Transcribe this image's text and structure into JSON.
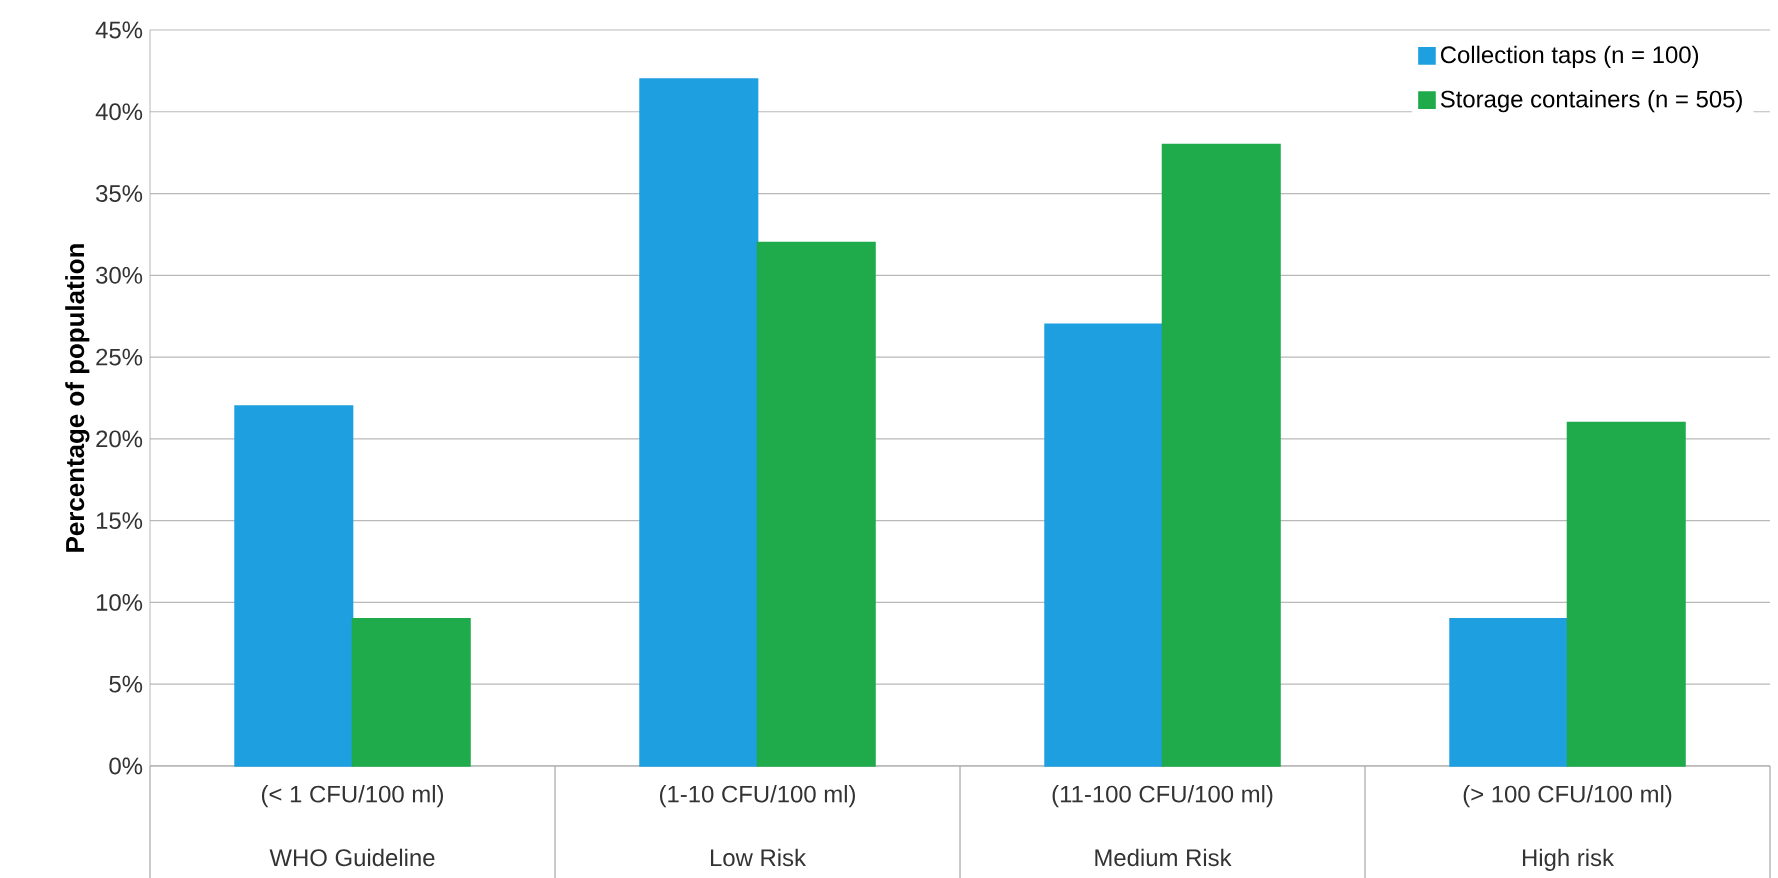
{
  "chart_data": {
    "type": "bar",
    "ylabel": "Percentage of population",
    "categories": [
      "(< 1 CFU/100 ml)",
      "(1-10 CFU/100 ml)",
      "(11-100 CFU/100 ml)",
      "(> 100 CFU/100 ml)"
    ],
    "series": [
      {
        "name": "Collection taps (n = 100)",
        "color": "#1e9fe0",
        "values": [
          22,
          42,
          27,
          9
        ]
      },
      {
        "name": "Storage containers (n = 505)",
        "color": "#1faa4b",
        "values": [
          9,
          32,
          38,
          21
        ]
      }
    ],
    "annotations": [
      "WHO Guideline",
      "Low Risk",
      "Medium Risk",
      "High risk"
    ],
    "ylim": [
      0,
      45
    ],
    "yticks": [
      {
        "value": 0,
        "label": "0%"
      },
      {
        "value": 5,
        "label": "5%"
      },
      {
        "value": 10,
        "label": "10%"
      },
      {
        "value": 15,
        "label": "15%"
      },
      {
        "value": 20,
        "label": "20%"
      },
      {
        "value": 25,
        "label": "25%"
      },
      {
        "value": 30,
        "label": "30%"
      },
      {
        "value": 35,
        "label": "35%"
      },
      {
        "value": 40,
        "label": "40%"
      },
      {
        "value": 45,
        "label": "45%"
      }
    ],
    "grid": "y",
    "legend": "top right"
  }
}
